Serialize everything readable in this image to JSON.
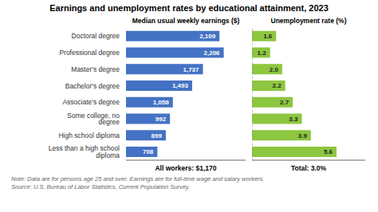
{
  "title": "Earnings and unemployment rates by educational attainment, 2023",
  "annotations": [
    "Note: Data are for persons age 25 and over. Earnings are for full-time wage and salary workers.",
    "Source: U.S. Bureau of Labor Statistics, Current Population Survey."
  ],
  "chart_data": [
    {
      "type": "bar",
      "orientation": "horizontal",
      "title": "Median usual weekly earnings ($)",
      "categories": [
        "Doctoral degree",
        "Professional degree",
        "Master's degree",
        "Bachelor's degree",
        "Associate's degree",
        "Some college, no degree",
        "High school diploma",
        "Less than a high school diploma"
      ],
      "values": [
        2109,
        2206,
        1737,
        1493,
        1058,
        992,
        899,
        708
      ],
      "value_labels": [
        "2,109",
        "2,206",
        "1,737",
        "1,493",
        "1,058",
        "992",
        "899",
        "708"
      ],
      "data_labels": true,
      "color": "#4472c4",
      "xlim": [
        0,
        2700
      ],
      "tick_labels": "y",
      "grid": false,
      "annotations": [
        "All workers: $1,170"
      ]
    },
    {
      "type": "bar",
      "orientation": "horizontal",
      "title": "Unemployment rate (%)",
      "categories": [
        "Doctoral degree",
        "Professional degree",
        "Master's degree",
        "Bachelor's degree",
        "Associate's degree",
        "Some college, no degree",
        "High school diploma",
        "Less than a high school diploma"
      ],
      "values": [
        1.6,
        1.2,
        2.0,
        2.2,
        2.7,
        3.3,
        3.9,
        5.6
      ],
      "value_labels": [
        "1.6",
        "1.2",
        "2.0",
        "2.2",
        "2.7",
        "3.3",
        "3.9",
        "5.6"
      ],
      "data_labels": true,
      "color": "#8dc63f",
      "xlim": [
        0,
        7.5
      ],
      "tick_labels": false,
      "grid": false,
      "annotations": [
        "Total: 3.0%"
      ]
    }
  ]
}
